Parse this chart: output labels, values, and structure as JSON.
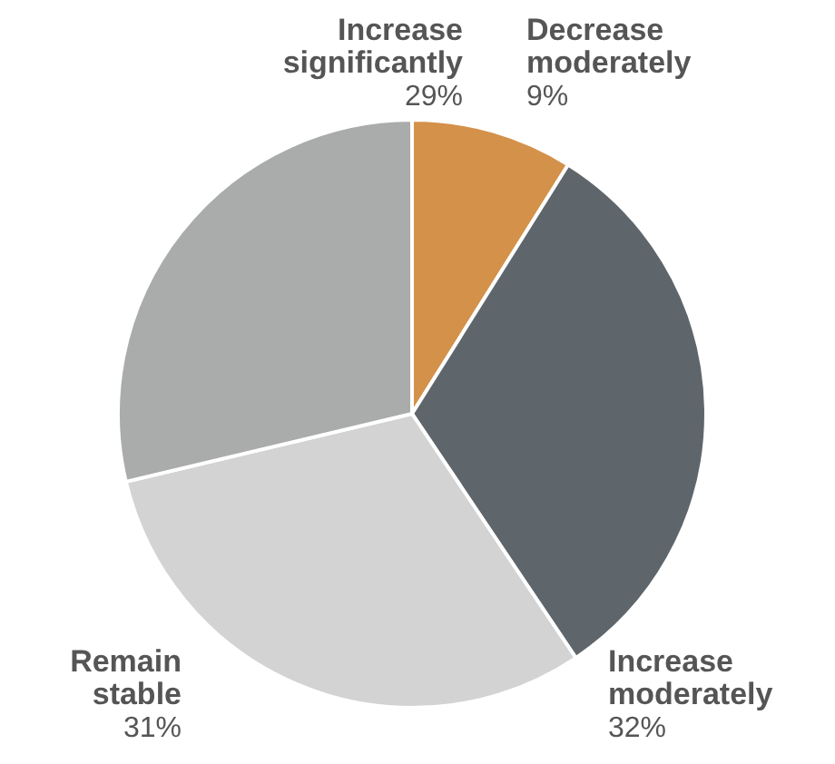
{
  "chart_data": {
    "type": "pie",
    "categories": [
      "Decrease moderately",
      "Increase moderately",
      "Remain stable",
      "Increase significantly"
    ],
    "values": [
      9,
      32,
      31,
      29
    ],
    "colors": [
      "#d4914a",
      "#5f666b",
      "#d3d3d3",
      "#a9acab"
    ],
    "value_labels": [
      "9%",
      "32%",
      "31%",
      "29%"
    ]
  }
}
